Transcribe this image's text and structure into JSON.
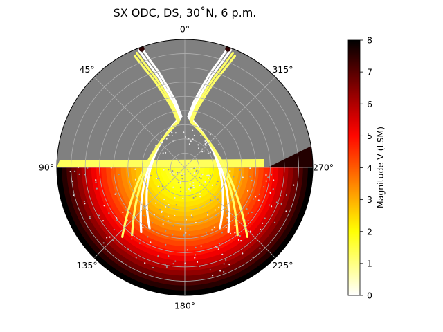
{
  "chart_data": {
    "type": "scatter",
    "projection": "polar",
    "title": "SX ODC, DS, 30˚N, 6 p.m.",
    "theta_direction": "clockwise",
    "theta_zero": "top",
    "theta_ticks": [
      "0°",
      "45°",
      "90°",
      "135°",
      "180°",
      "225°",
      "270°",
      "315°"
    ],
    "radial_grid": true,
    "background_color": "#808080",
    "colorbar": {
      "label": "Magnitude V (LSM)",
      "ticks": [
        "0",
        "1",
        "2",
        "3",
        "4",
        "5",
        "6",
        "7",
        "8"
      ],
      "range": [
        0,
        8
      ],
      "colormap": "hot_r",
      "placement": "right"
    },
    "series": [
      {
        "kind": "arc_band",
        "x": [
          20,
          18,
          15,
          12,
          8,
          4
        ],
        "y": [
          1.0,
          1.6,
          2.3,
          3.4,
          4.8,
          7.5
        ]
      },
      {
        "kind": "arc_band",
        "x": [
          340,
          342,
          345,
          348,
          352,
          356
        ],
        "y": [
          1.0,
          1.6,
          2.3,
          3.4,
          4.8,
          7.5
        ]
      },
      {
        "kind": "shaded_region",
        "x": [
          90,
          135,
          180,
          225,
          270
        ],
        "y": [
          1.6,
          3.0,
          4.6,
          6.2,
          8.0
        ]
      }
    ]
  }
}
